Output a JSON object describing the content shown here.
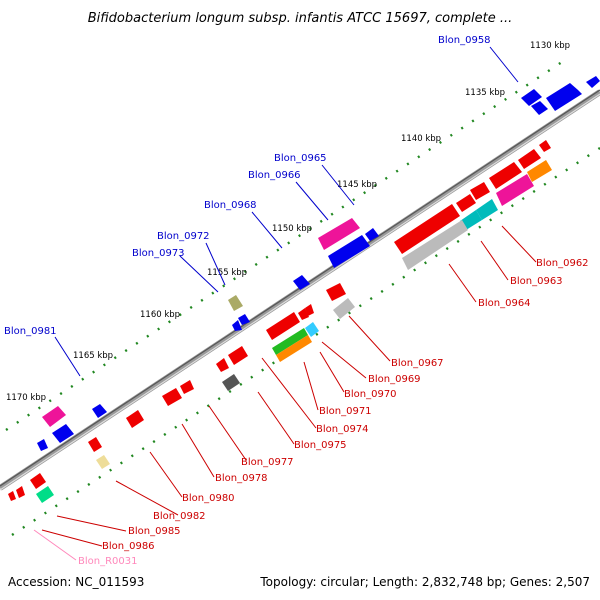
{
  "title": "Bifidobacterium longum subsp. infantis ATCC 15697, complete ...",
  "footer": {
    "accession": "Accession: NC_011593",
    "topology": "Topology: circular; Length: 2,832,748 bp; Genes: 2,507"
  },
  "scale_labels": [
    "1130 kbp",
    "1135 kbp",
    "1140 kbp",
    "1145 kbp",
    "1150 kbp",
    "1155 kbp",
    "1160 kbp",
    "1165 kbp",
    "1170 kbp"
  ],
  "colors": {
    "forward_label": "#0000cc",
    "reverse_label": "#cc0000",
    "rna_label": "#ff88bb",
    "backbone": "#888888",
    "tick": "#228822"
  },
  "gene_labels_forward": [
    "Blon_0958",
    "Blon_0965",
    "Blon_0966",
    "Blon_0968",
    "Blon_0972",
    "Blon_0973",
    "Blon_0981"
  ],
  "gene_labels_reverse": [
    "Blon_0962",
    "Blon_0963",
    "Blon_0964",
    "Blon_0967",
    "Blon_0969",
    "Blon_0970",
    "Blon_0971",
    "Blon_0974",
    "Blon_0975",
    "Blon_0977",
    "Blon_0978",
    "Blon_0980",
    "Blon_0982",
    "Blon_0985",
    "Blon_0986"
  ],
  "gene_labels_rna": [
    "Blon_R0031"
  ]
}
